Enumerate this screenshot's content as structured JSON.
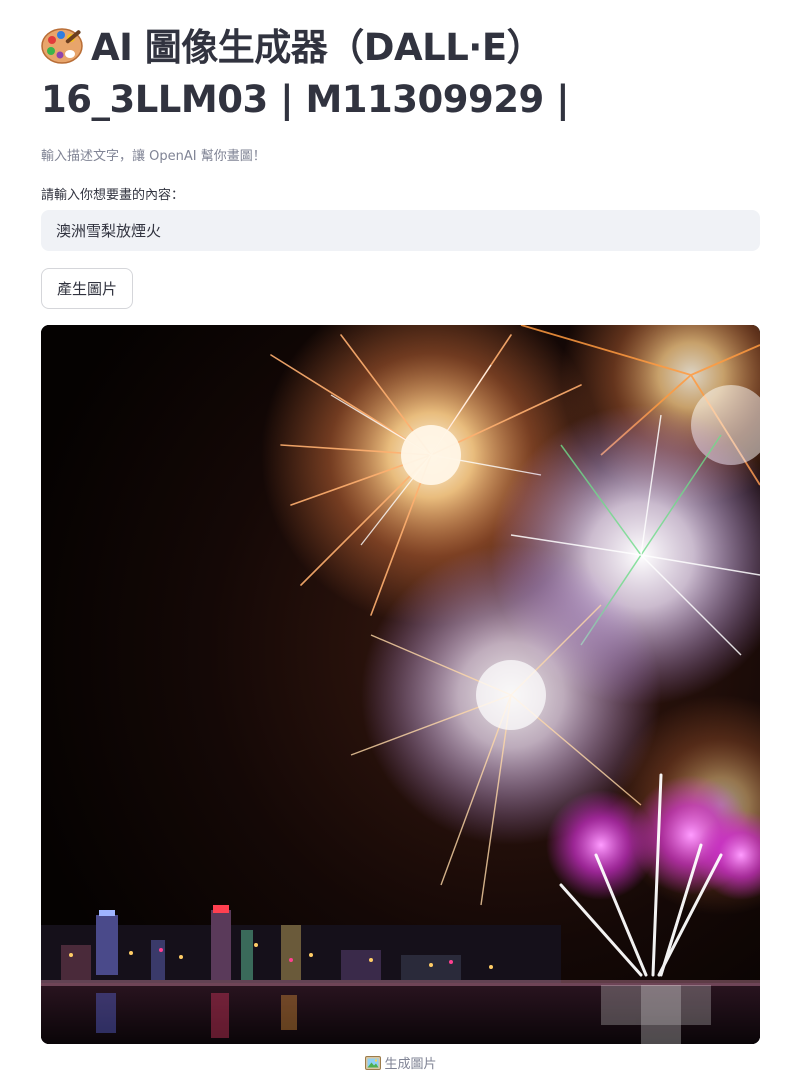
{
  "header": {
    "title_line1": "AI 圖像生成器（DALL·E）",
    "title_line2": "16_3LLM03 | M11309929 |",
    "emoji_icon": "artist-palette-icon"
  },
  "main": {
    "subtitle": "輸入描述文字，讓 OpenAI 幫你畫圖！",
    "prompt_label": "請輸入你想要畫的內容：",
    "prompt_value": "澳洲雪梨放煙火",
    "generate_button": "產生圖片",
    "image_alt": "fireworks-over-city-skyline",
    "caption_icon": "framed-picture-icon",
    "caption": "生成圖片"
  }
}
